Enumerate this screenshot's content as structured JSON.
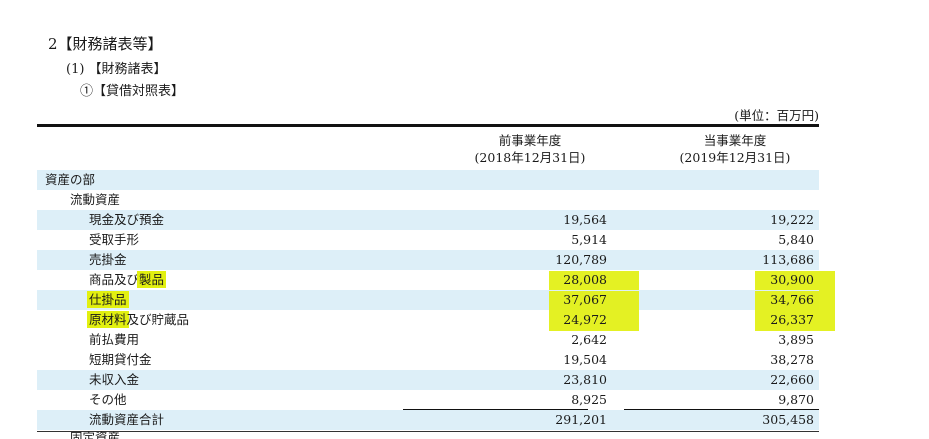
{
  "headings": {
    "h1": "2【財務諸表等】",
    "h2": "(1) 【財務諸表】",
    "h3": "①【貸借対照表】"
  },
  "unit": "(単位：百万円)",
  "columns": {
    "prev_title": "前事業年度",
    "prev_date": "(2018年12月31日)",
    "curr_title": "当事業年度",
    "curr_date": "(2019年12月31日)"
  },
  "rows": [
    {
      "label": "資産の部",
      "v1": "",
      "v2": ""
    },
    {
      "label": "流動資産",
      "v1": "",
      "v2": ""
    },
    {
      "label": "現金及び預金",
      "v1": "19,564",
      "v2": "19,222"
    },
    {
      "label": "受取手形",
      "v1": "5,914",
      "v2": "5,840"
    },
    {
      "label": "売掛金",
      "v1": "120,789",
      "v2": "113,686"
    },
    {
      "label_a": "商品及び",
      "label_b": "製品",
      "v1": "28,008",
      "v2": "30,900"
    },
    {
      "label": "仕掛品",
      "v1": "37,067",
      "v2": "34,766"
    },
    {
      "label_a": "原材料",
      "label_b": "及び貯蔵品",
      "v1": "24,972",
      "v2": "26,337"
    },
    {
      "label": "前払費用",
      "v1": "2,642",
      "v2": "3,895"
    },
    {
      "label": "短期貸付金",
      "v1": "19,504",
      "v2": "38,278"
    },
    {
      "label": "未収入金",
      "v1": "23,810",
      "v2": "22,660"
    },
    {
      "label": "その他",
      "v1": "8,925",
      "v2": "9,870"
    },
    {
      "label": "流動資産合計",
      "v1": "291,201",
      "v2": "305,458"
    }
  ],
  "cut_row_label": "固定資産",
  "highlight_color": "#e2f010",
  "shade_color": "#ddeff8"
}
